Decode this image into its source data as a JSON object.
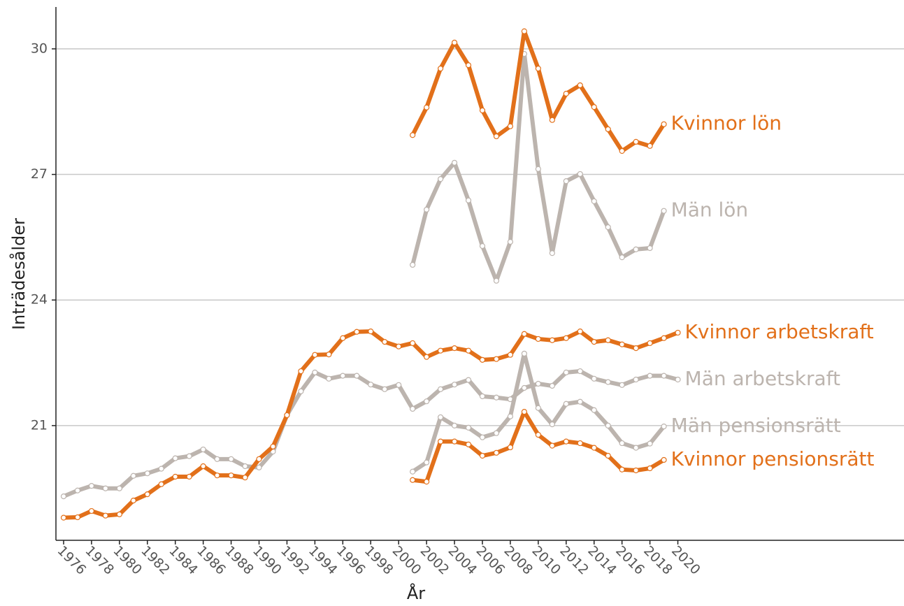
{
  "chart_data": {
    "type": "line",
    "xlabel": "År",
    "ylabel": "Inträdesålder",
    "x": [
      1976,
      1977,
      1978,
      1979,
      1980,
      1981,
      1982,
      1983,
      1984,
      1985,
      1986,
      1987,
      1988,
      1989,
      1990,
      1991,
      1992,
      1993,
      1994,
      1995,
      1996,
      1997,
      1998,
      1999,
      2000,
      2001,
      2002,
      2003,
      2004,
      2005,
      2006,
      2007,
      2008,
      2009,
      2010,
      2011,
      2012,
      2013,
      2014,
      2015,
      2016,
      2017,
      2018,
      2019,
      2020
    ],
    "xlim": [
      1975.45,
      2036.2
    ],
    "xticks": [
      1976,
      1978,
      1980,
      1982,
      1984,
      1986,
      1988,
      1990,
      1992,
      1994,
      1996,
      1998,
      2000,
      2002,
      2004,
      2006,
      2008,
      2010,
      2012,
      2014,
      2016,
      2018,
      2020
    ],
    "ylim": [
      18.26,
      31.0
    ],
    "yticks": [
      21,
      24,
      27,
      30
    ],
    "grid": true,
    "series": [
      {
        "name": "Män lön",
        "color": "#bcb4ae",
        "values": [
          null,
          null,
          null,
          null,
          null,
          null,
          null,
          null,
          null,
          null,
          null,
          null,
          null,
          null,
          null,
          null,
          null,
          null,
          null,
          null,
          null,
          null,
          null,
          null,
          null,
          24.84,
          26.16,
          26.89,
          27.28,
          26.38,
          25.29,
          24.46,
          25.39,
          29.88,
          27.13,
          25.12,
          26.84,
          27.01,
          26.36,
          25.74,
          25.02,
          25.21,
          25.24,
          26.13,
          null
        ]
      },
      {
        "name": "Män arbetskraft",
        "color": "#bcb4ae",
        "values": [
          19.31,
          19.45,
          19.56,
          19.5,
          19.5,
          19.8,
          19.86,
          19.97,
          20.22,
          20.27,
          20.43,
          20.2,
          20.2,
          20.03,
          20.0,
          20.38,
          21.25,
          21.82,
          22.27,
          22.12,
          22.19,
          22.19,
          21.98,
          21.87,
          21.97,
          21.4,
          21.58,
          21.87,
          21.98,
          22.09,
          21.7,
          21.67,
          21.63,
          21.9,
          22.0,
          21.95,
          22.27,
          22.3,
          22.12,
          22.04,
          21.97,
          22.1,
          22.19,
          22.19,
          22.1
        ]
      },
      {
        "name": "Män pensionsrätt",
        "color": "#bcb4ae",
        "values": [
          null,
          null,
          null,
          null,
          null,
          null,
          null,
          null,
          null,
          null,
          null,
          null,
          null,
          null,
          null,
          null,
          null,
          null,
          null,
          null,
          null,
          null,
          null,
          null,
          null,
          19.9,
          20.12,
          21.2,
          21.0,
          20.95,
          20.72,
          20.82,
          21.22,
          22.72,
          21.42,
          21.03,
          21.52,
          21.57,
          21.37,
          21.0,
          20.58,
          20.47,
          20.57,
          20.98,
          null
        ]
      },
      {
        "name": "Kvinnor lön",
        "color": "#e2701a",
        "values": [
          null,
          null,
          null,
          null,
          null,
          null,
          null,
          null,
          null,
          null,
          null,
          null,
          null,
          null,
          null,
          null,
          null,
          null,
          null,
          null,
          null,
          null,
          null,
          null,
          null,
          27.94,
          28.6,
          29.53,
          30.15,
          29.61,
          28.53,
          27.91,
          28.15,
          30.42,
          29.53,
          28.3,
          28.93,
          29.13,
          28.61,
          28.08,
          27.56,
          27.78,
          27.68,
          28.2,
          null
        ]
      },
      {
        "name": "Kvinnor arbetskraft",
        "color": "#e2701a",
        "values": [
          18.8,
          18.81,
          18.96,
          18.85,
          18.88,
          19.21,
          19.36,
          19.6,
          19.78,
          19.78,
          20.03,
          19.81,
          19.81,
          19.76,
          20.2,
          20.5,
          21.25,
          22.3,
          22.69,
          22.7,
          23.09,
          23.24,
          23.25,
          23.0,
          22.89,
          22.97,
          22.64,
          22.79,
          22.85,
          22.79,
          22.57,
          22.59,
          22.69,
          23.19,
          23.07,
          23.04,
          23.09,
          23.25,
          23.0,
          23.04,
          22.94,
          22.85,
          22.97,
          23.09,
          23.22
        ]
      },
      {
        "name": "Kvinnor pensionsrätt",
        "color": "#e2701a",
        "values": [
          null,
          null,
          null,
          null,
          null,
          null,
          null,
          null,
          null,
          null,
          null,
          null,
          null,
          null,
          null,
          null,
          null,
          null,
          null,
          null,
          null,
          null,
          null,
          null,
          null,
          19.7,
          19.66,
          20.62,
          20.62,
          20.55,
          20.28,
          20.35,
          20.48,
          21.33,
          20.78,
          20.52,
          20.62,
          20.58,
          20.47,
          20.28,
          19.95,
          19.93,
          19.98,
          20.18,
          null
        ]
      }
    ]
  }
}
